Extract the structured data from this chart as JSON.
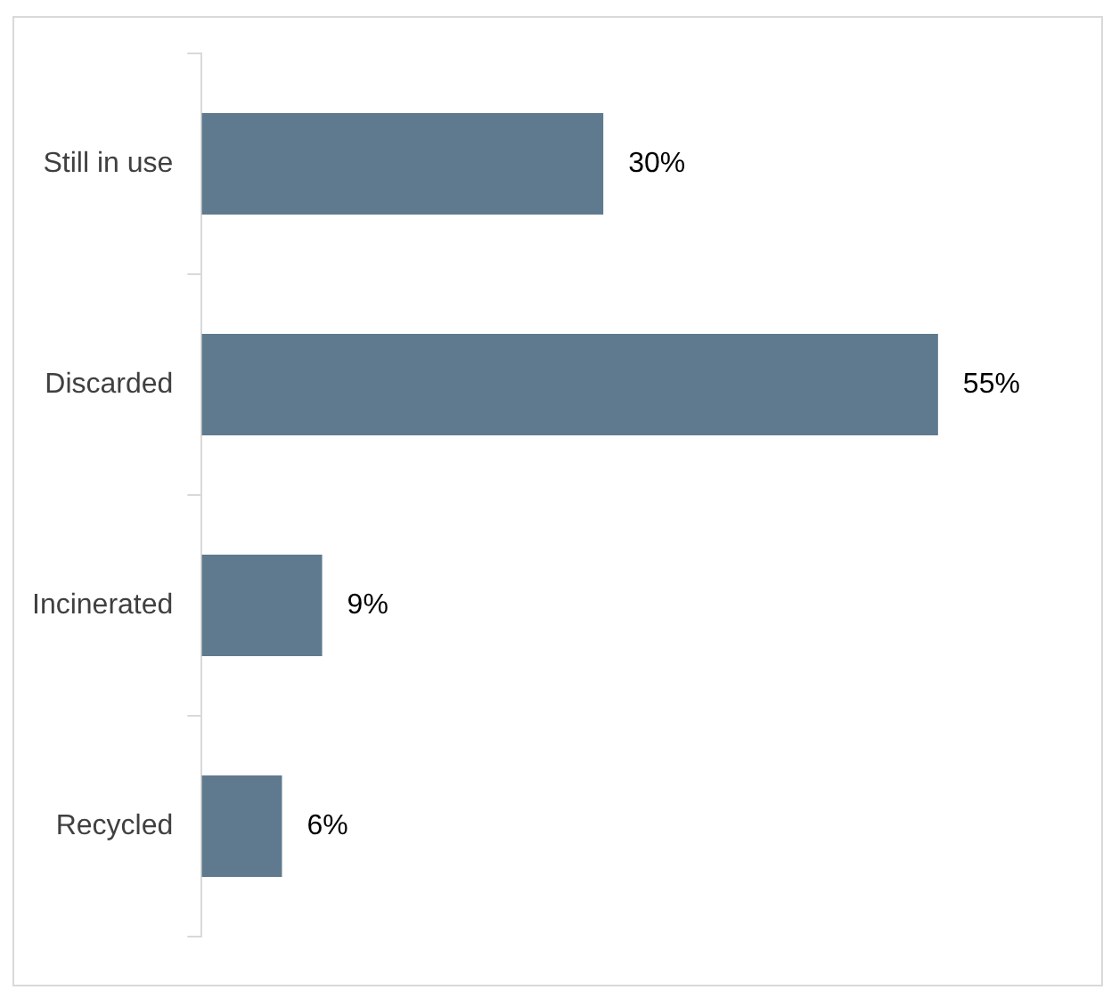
{
  "chart_data": {
    "type": "bar",
    "orientation": "horizontal",
    "categories": [
      "Still in use",
      "Discarded",
      "Incinerated",
      "Recycled"
    ],
    "values": [
      30,
      55,
      9,
      6
    ],
    "color": "#5f7a8e",
    "value_labels": [
      "30%",
      "55%",
      "9%",
      "6%"
    ],
    "legend": false
  }
}
